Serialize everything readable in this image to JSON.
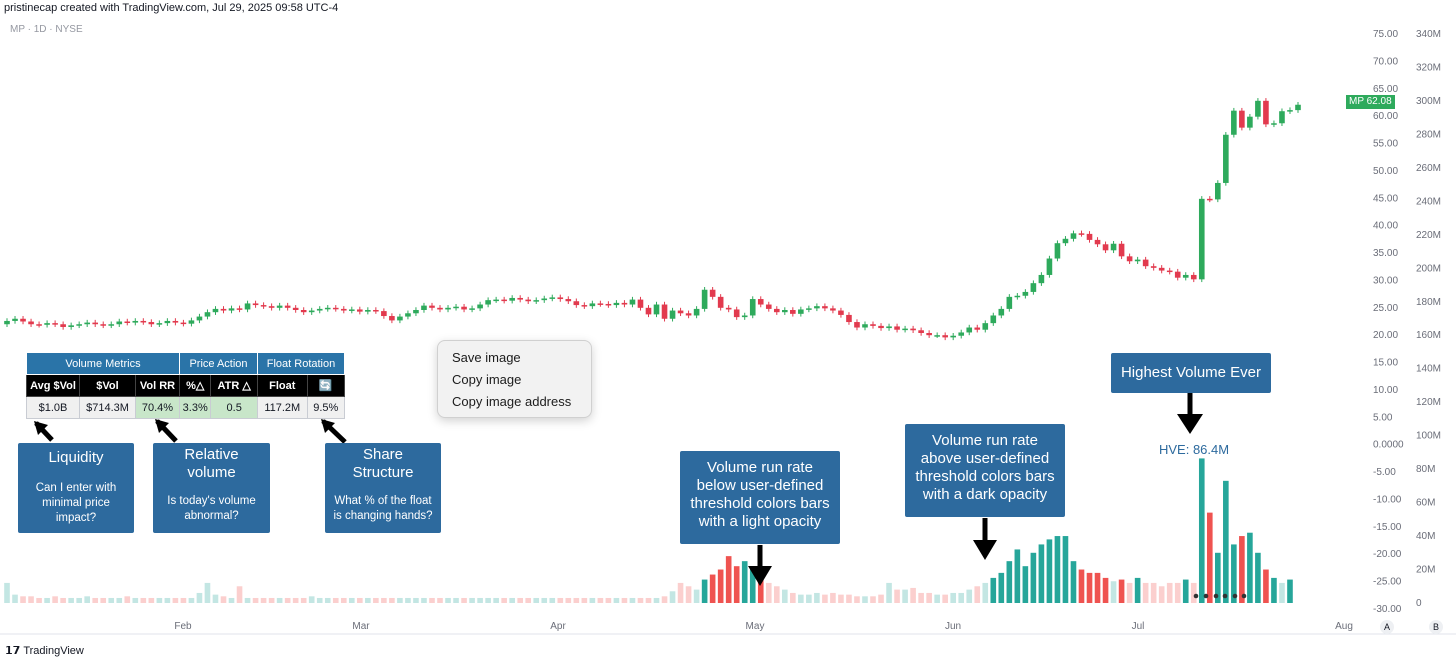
{
  "header": {
    "attribution": "pristinecap created with TradingView.com, Jul 29, 2025 09:58 UTC-4",
    "symbol": "MP · 1D · NYSE"
  },
  "price_tag": {
    "symbol": "MP",
    "value": "62.08"
  },
  "metrics_table": {
    "groups": [
      "Volume Metrics",
      "Price Action",
      "Float Rotation"
    ],
    "headers": [
      "Avg $Vol",
      "$Vol",
      "Vol RR",
      "%△",
      "ATR △",
      "Float",
      "🔄"
    ],
    "values": [
      "$1.0B",
      "$714.3M",
      "70.4%",
      "3.3%",
      "0.5",
      "117.2M",
      "9.5%"
    ]
  },
  "annotations": {
    "liquidity": {
      "title": "Liquidity",
      "sub": "Can I enter with minimal price impact?"
    },
    "relative_volume": {
      "title": "Relative volume",
      "sub": "Is today's volume abnormal?"
    },
    "share_structure": {
      "title": "Share Structure",
      "sub": "What % of the float is changing hands?"
    },
    "light_opacity": "Volume run rate below user-defined threshold colors bars with a light opacity",
    "dark_opacity": "Volume run rate above user-defined threshold colors bars with a dark opacity",
    "highest_volume": "Highest Volume Ever",
    "hve_label": "HVE: 86.4M"
  },
  "context_menu": [
    "Save image",
    "Copy image",
    "Copy image address"
  ],
  "footer": {
    "brand": "TradingView",
    "btn_a": "A",
    "btn_b": "B"
  },
  "colors": {
    "up": "#26a69a",
    "down": "#ef5350",
    "candle_up": "#2eaa5c",
    "candle_down": "#e23a4e",
    "annotation": "#2d6a9e"
  },
  "chart_data": {
    "type": "candlestick",
    "price_axis_ticks": [
      "75.00",
      "70.00",
      "65.00",
      "60.00",
      "55.00",
      "50.00",
      "45.00",
      "40.00",
      "35.00",
      "30.00",
      "25.00",
      "20.00",
      "15.00",
      "10.00",
      "5.00",
      "0.0000",
      "-5.00",
      "-10.00",
      "-15.00",
      "-20.00",
      "-25.00",
      "-30.00"
    ],
    "volume_axis_ticks": [
      "340M",
      "320M",
      "300M",
      "280M",
      "260M",
      "240M",
      "220M",
      "200M",
      "180M",
      "160M",
      "140M",
      "120M",
      "100M",
      "80M",
      "60M",
      "40M",
      "20M",
      "0"
    ],
    "month_labels": [
      "Feb",
      "Mar",
      "Apr",
      "May",
      "Jun",
      "Jul",
      "Aug"
    ],
    "ylim": [
      -30,
      75
    ],
    "close": [
      22.6,
      23.0,
      22.5,
      22.0,
      21.9,
      22.2,
      22.0,
      21.5,
      21.8,
      22.0,
      22.3,
      22.0,
      21.8,
      22.0,
      22.5,
      22.3,
      22.6,
      22.4,
      22.0,
      22.2,
      22.6,
      22.3,
      22.1,
      22.7,
      23.4,
      24.2,
      24.8,
      24.5,
      24.9,
      24.7,
      25.8,
      25.5,
      25.3,
      25.0,
      25.4,
      25.0,
      24.6,
      24.2,
      24.5,
      24.8,
      25.0,
      24.8,
      24.5,
      24.7,
      24.3,
      24.6,
      24.4,
      23.5,
      22.7,
      23.4,
      24.0,
      24.6,
      25.4,
      25.0,
      24.7,
      25.0,
      25.2,
      24.7,
      24.9,
      25.6,
      26.4,
      26.5,
      26.3,
      26.8,
      26.5,
      26.2,
      26.4,
      26.7,
      26.9,
      26.6,
      26.2,
      25.5,
      25.3,
      25.8,
      25.7,
      25.5,
      25.9,
      25.6,
      26.5,
      25.0,
      23.8,
      25.6,
      23.0,
      24.5,
      24.0,
      23.6,
      24.8,
      28.3,
      27.0,
      25.0,
      24.7,
      23.3,
      23.6,
      26.6,
      25.6,
      24.8,
      24.2,
      24.6,
      23.9,
      24.7,
      24.9,
      25.3,
      24.9,
      24.5,
      23.7,
      22.4,
      21.4,
      22.0,
      21.7,
      21.3,
      21.6,
      21.0,
      21.2,
      20.9,
      20.4,
      20.0,
      20.0,
      19.6,
      19.9,
      20.5,
      21.4,
      21.0,
      22.2,
      23.6,
      24.8,
      27.0,
      27.2,
      27.9,
      29.5,
      31.0,
      34.0,
      36.8,
      37.6,
      38.6,
      38.5,
      37.4,
      36.6,
      35.5,
      36.7,
      34.4,
      33.5,
      33.8,
      32.6,
      32.3,
      31.8,
      31.6,
      30.5,
      31.0,
      30.2,
      44.9,
      44.8,
      47.8,
      56.6,
      61.0,
      57.9,
      59.9,
      62.8,
      58.5,
      58.7,
      60.9,
      61.1,
      62.08
    ],
    "volume_millions": [
      12,
      5,
      4,
      4,
      3,
      3,
      4,
      3,
      3,
      3,
      4,
      3,
      3,
      3,
      3,
      4,
      3,
      3,
      3,
      3,
      3,
      3,
      3,
      3,
      6,
      12,
      5,
      4,
      3,
      10,
      3,
      3,
      3,
      3,
      3,
      3,
      3,
      3,
      4,
      3,
      3,
      3,
      3,
      3,
      3,
      3,
      3,
      3,
      3,
      3,
      3,
      3,
      3,
      3,
      3,
      3,
      3,
      3,
      3,
      3,
      3,
      3,
      3,
      3,
      3,
      3,
      3,
      3,
      3,
      3,
      3,
      3,
      3,
      3,
      3,
      3,
      3,
      3,
      3,
      3,
      3,
      3,
      4,
      7,
      12,
      10,
      8,
      14,
      17,
      20,
      28,
      22,
      25,
      20,
      16,
      12,
      10,
      8,
      6,
      5,
      5,
      6,
      5,
      6,
      5,
      5,
      4,
      4,
      4,
      5,
      12,
      8,
      8,
      9,
      6,
      6,
      5,
      5,
      6,
      6,
      8,
      10,
      12,
      15,
      18,
      25,
      32,
      22,
      30,
      35,
      38,
      40,
      40,
      25,
      20,
      18,
      18,
      15,
      13,
      14,
      12,
      15,
      12,
      12,
      10,
      12,
      12,
      14,
      12,
      86.4,
      54,
      30,
      73,
      35,
      40,
      42,
      30,
      20,
      15,
      12,
      14
    ]
  }
}
